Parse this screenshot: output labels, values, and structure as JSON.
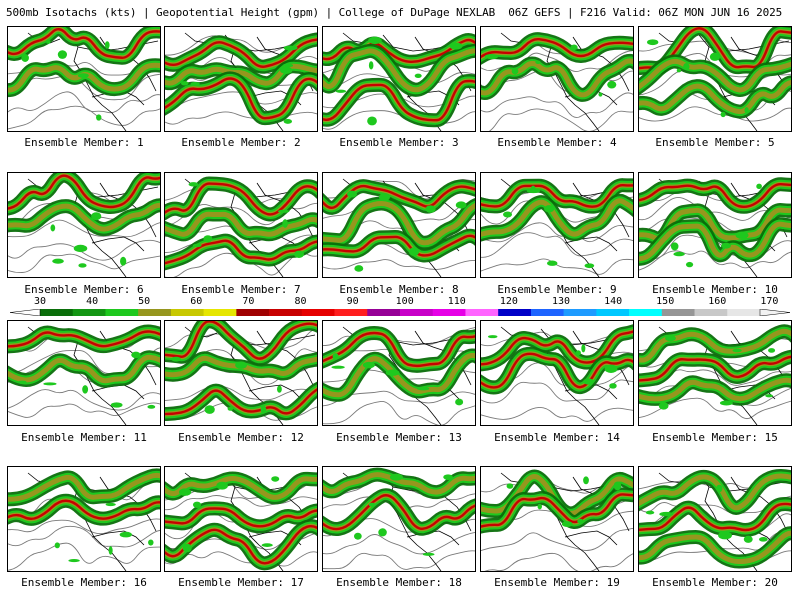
{
  "header": {
    "left_title": "500mb Isotachs (kts) | Geopotential Height (gpm) | College of DuPage NEXLAB",
    "right_title": "06Z GEFS | F216 Valid: 06Z MON JUN 16 2025"
  },
  "panels": [
    {
      "label": "Ensemble Member: 1"
    },
    {
      "label": "Ensemble Member: 2"
    },
    {
      "label": "Ensemble Member: 3"
    },
    {
      "label": "Ensemble Member: 4"
    },
    {
      "label": "Ensemble Member: 5"
    },
    {
      "label": "Ensemble Member: 6"
    },
    {
      "label": "Ensemble Member: 7"
    },
    {
      "label": "Ensemble Member: 8"
    },
    {
      "label": "Ensemble Member: 9"
    },
    {
      "label": "Ensemble Member: 10"
    },
    {
      "label": "Ensemble Member: 11"
    },
    {
      "label": "Ensemble Member: 12"
    },
    {
      "label": "Ensemble Member: 13"
    },
    {
      "label": "Ensemble Member: 14"
    },
    {
      "label": "Ensemble Member: 15"
    },
    {
      "label": "Ensemble Member: 16"
    },
    {
      "label": "Ensemble Member: 17"
    },
    {
      "label": "Ensemble Member: 18"
    },
    {
      "label": "Ensemble Member: 19"
    },
    {
      "label": "Ensemble Member: 20"
    }
  ],
  "colorbar": {
    "tick_labels": [
      "30",
      "40",
      "50",
      "60",
      "70",
      "80",
      "90",
      "100",
      "110",
      "120",
      "130",
      "140",
      "150",
      "160",
      "170"
    ],
    "colors": [
      "#0a6e0a",
      "#149614",
      "#1ec81e",
      "#96961e",
      "#c8c800",
      "#e6e600",
      "#a00000",
      "#c80000",
      "#e60000",
      "#ff1e1e",
      "#960096",
      "#c800c8",
      "#e600e6",
      "#ff64ff",
      "#0000c8",
      "#1e64ff",
      "#1e9bff",
      "#00c8ff",
      "#00ffff",
      "#969696",
      "#c8c8c8",
      "#e6e6e6"
    ]
  },
  "legend": {
    "colors": {
      "coast": "#000000",
      "height_contours": "#7a7a7a",
      "jet_core_30": "#0a6e0a",
      "jet_core_40": "#1ec81e",
      "jet_core_60": "#96961e",
      "jet_core_80": "#c80000"
    }
  }
}
